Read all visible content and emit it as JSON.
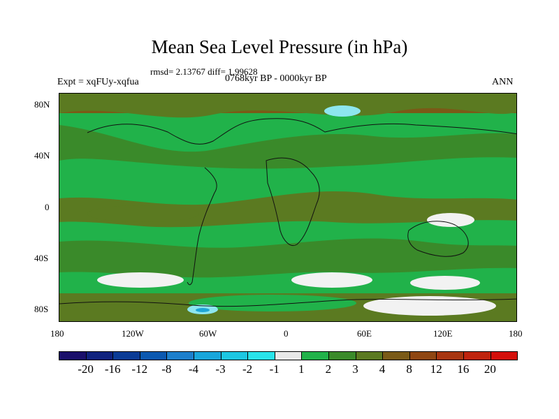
{
  "title": "Mean Sea Level Pressure (in hPa)",
  "stats": "rmsd= 2.13767 diff= 1.99628",
  "experiment": "Expt = xqFUy-xqfua",
  "period": "0768kyr BP - 0000kyr BP",
  "season": "ANN",
  "y_ticks": [
    "80N",
    "40N",
    "0",
    "40S",
    "80S"
  ],
  "x_ticks": [
    "180",
    "120W",
    "60W",
    "0",
    "60E",
    "120E",
    "180"
  ],
  "colorbar": {
    "labels": [
      "-20",
      "-16",
      "-12",
      "-8",
      "-4",
      "-3",
      "-2",
      "-1",
      "1",
      "2",
      "3",
      "4",
      "8",
      "12",
      "16",
      "20"
    ],
    "colors": [
      "#1a0f6b",
      "#10227e",
      "#0a3b96",
      "#0a58b0",
      "#1c7fcc",
      "#18a6db",
      "#1cc7e2",
      "#28e3ea",
      "#e8e8e8",
      "#21b24a",
      "#3a8a2a",
      "#5b7a21",
      "#7a5a17",
      "#8f4612",
      "#a83510",
      "#bf230d",
      "#d40f0a"
    ]
  },
  "map_colors": {
    "low": "#21b24a",
    "mid": "#3a8a2a",
    "brown": "#5b7a21",
    "high": "#7a5a17",
    "white": "#f2f2f2",
    "cyan": "#8de6ef",
    "blue": "#1ea6d6"
  }
}
